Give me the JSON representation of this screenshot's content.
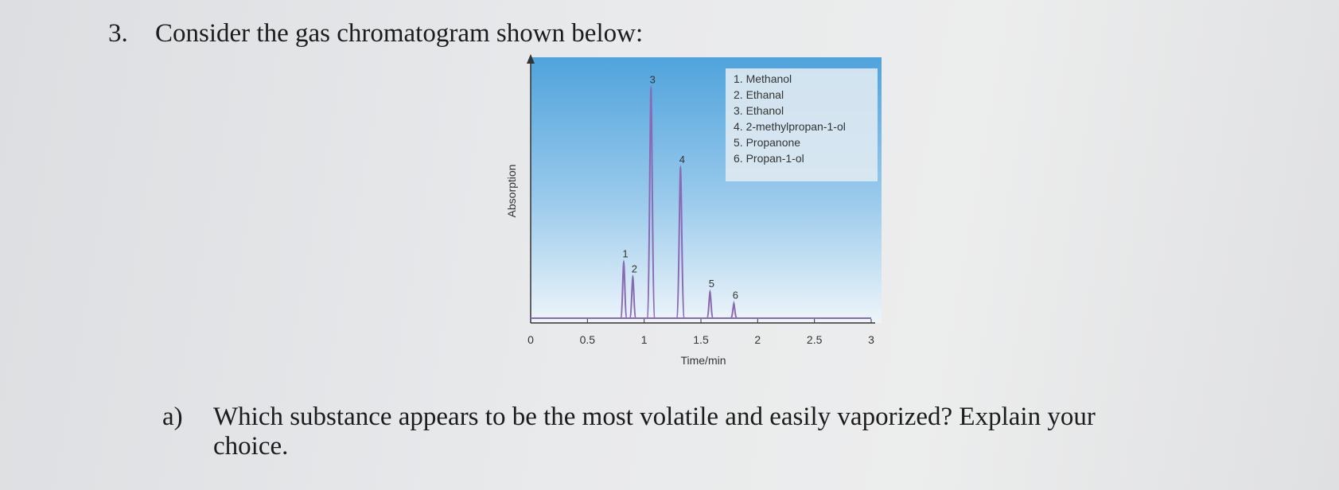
{
  "question": {
    "number": "3.",
    "text": "Consider the gas chromatogram shown below:"
  },
  "chart_data": {
    "type": "chromatogram",
    "xlabel": "Time/min",
    "ylabel": "Absorption",
    "xlim": [
      0,
      3
    ],
    "xticks": [
      0,
      0.5,
      1,
      1.5,
      2,
      2.5,
      3
    ],
    "ylim": [
      0,
      300
    ],
    "color": "#8a6ab4",
    "legend": [
      "1. Methanol",
      "2. Ethanal",
      "3. Ethanol",
      "4. 2-methylpropan-1-ol",
      "5. Propanone",
      "6. Propan-1-ol"
    ],
    "peaks": [
      {
        "label": "1",
        "time": 0.82,
        "height": 68
      },
      {
        "label": "2",
        "time": 0.9,
        "height": 50
      },
      {
        "label": "3",
        "time": 1.06,
        "height": 280
      },
      {
        "label": "4",
        "time": 1.32,
        "height": 183
      },
      {
        "label": "5",
        "time": 1.58,
        "height": 32
      },
      {
        "label": "6",
        "time": 1.79,
        "height": 18
      }
    ]
  },
  "subquestion": {
    "label": "a)",
    "lines": [
      "Which substance appears to be the most volatile and easily vaporized? Explain your",
      "choice."
    ]
  }
}
